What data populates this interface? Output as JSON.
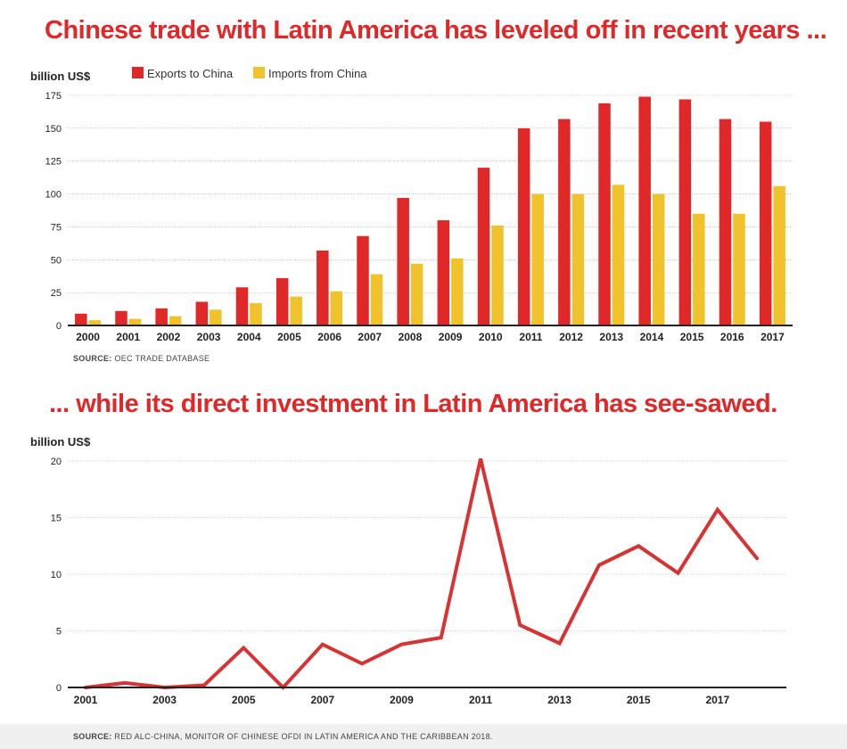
{
  "titles": {
    "top": "Chinese trade with Latin America has leveled off in recent years ...",
    "bottom": "... while its direct investment in Latin America has see-sawed."
  },
  "sources": {
    "top_label": "SOURCE:",
    "top_text": "OEC TRADE DATABASE",
    "bottom_label": "SOURCE:",
    "bottom_text": "RED ALC-CHINA, MONITOR OF CHINESE OFDI IN LATIN AMERICA AND THE CARIBBEAN 2018."
  },
  "colors": {
    "exports": "#e02828",
    "imports": "#f0c22b",
    "line": "#d93232"
  },
  "chart_data": [
    {
      "type": "bar",
      "unit_label": "billion US$",
      "categories": [
        "2000",
        "2001",
        "2002",
        "2003",
        "2004",
        "2005",
        "2006",
        "2007",
        "2008",
        "2009",
        "2010",
        "2011",
        "2012",
        "2013",
        "2014",
        "2015",
        "2016",
        "2017"
      ],
      "series": [
        {
          "name": "Exports to China",
          "values": [
            9,
            11,
            13,
            18,
            29,
            36,
            57,
            68,
            97,
            80,
            120,
            150,
            157,
            169,
            174,
            172,
            157,
            155
          ]
        },
        {
          "name": "Imports from China",
          "values": [
            4,
            5,
            7,
            12,
            17,
            22,
            26,
            39,
            47,
            51,
            76,
            100,
            100,
            107,
            100,
            85,
            85,
            106
          ]
        }
      ],
      "yticks": [
        0,
        25,
        50,
        75,
        100,
        125,
        150,
        175
      ],
      "ylim": [
        0,
        175
      ],
      "legend": "top-left",
      "grid": true
    },
    {
      "type": "line",
      "unit_label": "billion US$",
      "x": [
        2001,
        2002,
        2003,
        2004,
        2005,
        2006,
        2007,
        2008,
        2009,
        2010,
        2011,
        2012,
        2013,
        2014,
        2015,
        2016,
        2017,
        2018
      ],
      "series": [
        {
          "values": [
            0,
            0.4,
            0,
            0.2,
            3.5,
            0,
            3.8,
            2.1,
            3.8,
            4.4,
            20.2,
            5.5,
            3.9,
            10.8,
            12.5,
            10.1,
            15.7,
            11.4
          ]
        }
      ],
      "xticks": [
        "2001",
        "2003",
        "2005",
        "2007",
        "2009",
        "2011",
        "2013",
        "2015",
        "2017"
      ],
      "yticks": [
        0,
        5,
        10,
        15,
        20
      ],
      "ylim": [
        0,
        20
      ],
      "grid": true
    }
  ]
}
